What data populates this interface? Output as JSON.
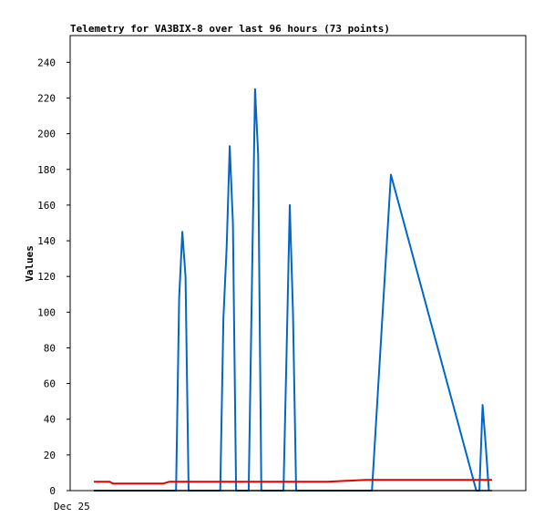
{
  "chart_data": {
    "type": "line",
    "title": "Telemetry for VA3BIX-8 over last 96 hours (73 points)",
    "xlabel": "",
    "ylabel": "Values",
    "ylim": [
      0,
      255
    ],
    "yticks": [
      0,
      20,
      40,
      60,
      80,
      100,
      120,
      140,
      160,
      180,
      200,
      220,
      240
    ],
    "xtick_labels": [
      "Dec 25"
    ],
    "grid": false,
    "legend": "none",
    "series": [
      {
        "color": "#0066cc",
        "x": [
          0,
          1.3,
          1.35,
          1.4,
          1.45,
          1.5,
          2.0,
          2.05,
          2.1,
          2.15,
          2.2,
          2.25,
          2.45,
          2.5,
          2.55,
          2.6,
          2.65,
          3.0,
          3.05,
          3.1,
          3.15,
          3.2,
          4.4,
          4.7,
          6.05,
          6.1,
          6.15,
          6.2,
          6.25
        ],
        "y": [
          0,
          0,
          108,
          145,
          120,
          0,
          0,
          97,
          136,
          193,
          150,
          0,
          0,
          113,
          225,
          188,
          0,
          0,
          80,
          160,
          100,
          0,
          0,
          177,
          0,
          0,
          48,
          25,
          0
        ]
      },
      {
        "color": "#e60000",
        "x": [
          0,
          0.25,
          0.3,
          1.1,
          1.2,
          3.5,
          3.7,
          4.3,
          6.0,
          6.3
        ],
        "y": [
          5,
          5,
          4,
          4,
          5,
          5,
          5,
          6,
          6,
          6
        ]
      },
      {
        "color": "#000000",
        "x": [
          0,
          6.3
        ],
        "y": [
          0,
          0
        ]
      }
    ]
  }
}
